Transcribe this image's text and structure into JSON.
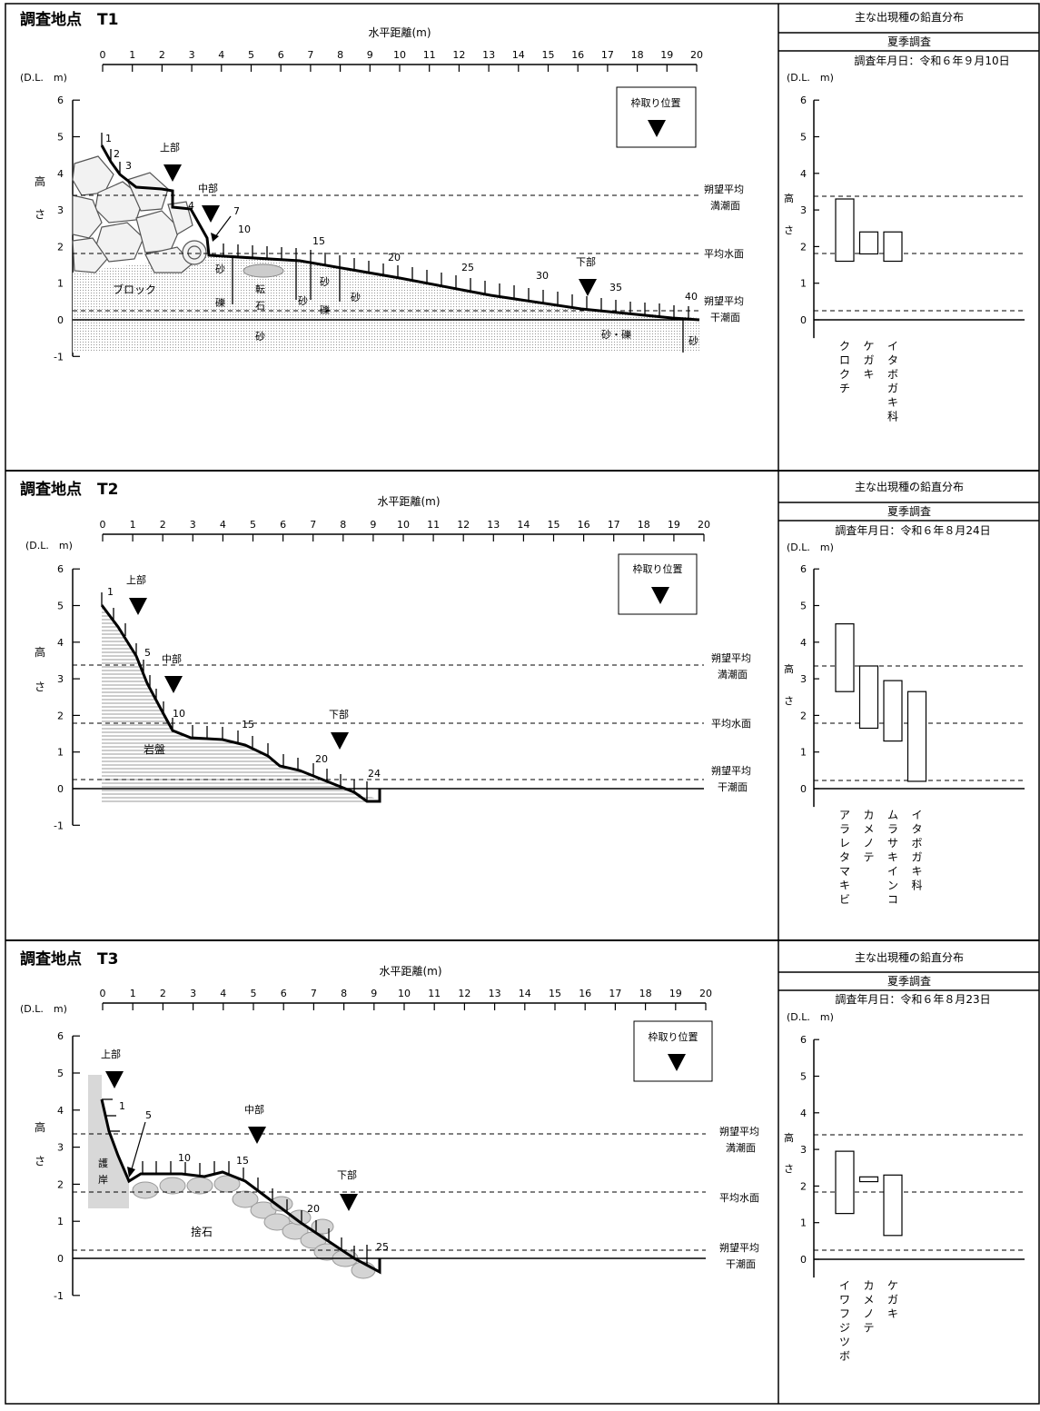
{
  "common": {
    "x_axis_label": "水平距離(m)",
    "y_unit": "(D.L.　m)",
    "y_label_1": "高",
    "y_label_2": "さ",
    "frame_legend": "枠取り位置",
    "line_hwl_1": "朔望平均",
    "line_hwl_2": "満潮面",
    "line_msl": "平均水面",
    "line_lwl_1": "朔望平均",
    "line_lwl_2": "干潮面",
    "label_upper": "上部",
    "label_middle": "中部",
    "label_lower": "下部",
    "side_title": "主な出現種の鉛直分布",
    "side_season": "夏季調査",
    "x_ticks": [
      "0",
      "1",
      "2",
      "3",
      "4",
      "5",
      "6",
      "7",
      "8",
      "9",
      "10",
      "11",
      "12",
      "13",
      "14",
      "15",
      "16",
      "17",
      "18",
      "19",
      "20"
    ],
    "y_ticks": [
      "6",
      "5",
      "4",
      "3",
      "2",
      "1",
      "0",
      "-1"
    ],
    "side_y_ticks": [
      "6",
      "5",
      "4",
      "3",
      "2",
      "1",
      "0"
    ]
  },
  "stations": [
    {
      "title": "調査地点　T1",
      "date": "調査年月日：令和６年９月10日",
      "numbers": [
        "1",
        "2",
        "3",
        "4",
        "7",
        "10",
        "15",
        "20",
        "25",
        "30",
        "35",
        "40"
      ],
      "substrates": [
        "ブロック",
        "砂",
        "礫",
        "転",
        "石",
        "砂",
        "砂",
        "礫",
        "砂",
        "砂",
        "砂・礫",
        "砂"
      ],
      "species": [
        {
          "name": "クロクチ",
          "top": 3.3,
          "bottom": 1.6
        },
        {
          "name": "ケガキ",
          "top": 2.4,
          "bottom": 1.8
        },
        {
          "name": "イタボガキ科",
          "top": 2.4,
          "bottom": 1.6
        }
      ]
    },
    {
      "title": "調査地点　T2",
      "date": "調査年月日：令和６年８月24日",
      "numbers": [
        "1",
        "5",
        "10",
        "15",
        "20",
        "24"
      ],
      "substrates": [
        "岩盤"
      ],
      "species": [
        {
          "name": "アラレタマキビ",
          "top": 4.5,
          "bottom": 2.65
        },
        {
          "name": "カメノテ",
          "top": 3.35,
          "bottom": 1.65
        },
        {
          "name": "ムラサキインコ",
          "top": 2.95,
          "bottom": 1.3
        },
        {
          "name": "イタボガキ科",
          "top": 2.65,
          "bottom": 0.2
        }
      ]
    },
    {
      "title": "調査地点　T3",
      "date": "調査年月日：令和６年８月23日",
      "numbers": [
        "1",
        "5",
        "10",
        "15",
        "20",
        "25"
      ],
      "substrates": [
        "護",
        "岸",
        "捨石"
      ],
      "species": [
        {
          "name": "イワフジツボ",
          "top": 2.95,
          "bottom": 1.25
        },
        {
          "name": "カメノテ",
          "top": 2.25,
          "bottom": 2.12
        },
        {
          "name": "ケガキ",
          "top": 2.3,
          "bottom": 0.65
        }
      ]
    }
  ]
}
